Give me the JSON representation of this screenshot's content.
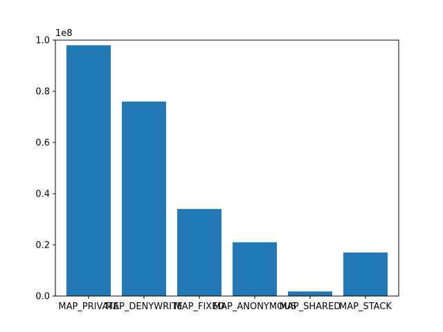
{
  "chart_data": {
    "type": "bar",
    "title": "",
    "xlabel": "",
    "ylabel": "",
    "categories": [
      "MAP_PRIVATE",
      "MAP_DENYWRITE",
      "MAP_FIXED",
      "MAP_ANONYMOUS",
      "MAP_SHARED",
      "MAP_STACK"
    ],
    "values": [
      98000000,
      76000000,
      34000000,
      21000000,
      1800000,
      17000000
    ],
    "ylim": [
      0,
      100000000
    ],
    "yticks": [
      0,
      20000000,
      40000000,
      60000000,
      80000000,
      100000000
    ],
    "ytick_labels": [
      "0.0",
      "0.2",
      "0.4",
      "0.6",
      "0.8",
      "1.0"
    ],
    "y_offset_label": "1e8",
    "bar_color": "#1f77b4",
    "grid": false,
    "legend": "none"
  }
}
